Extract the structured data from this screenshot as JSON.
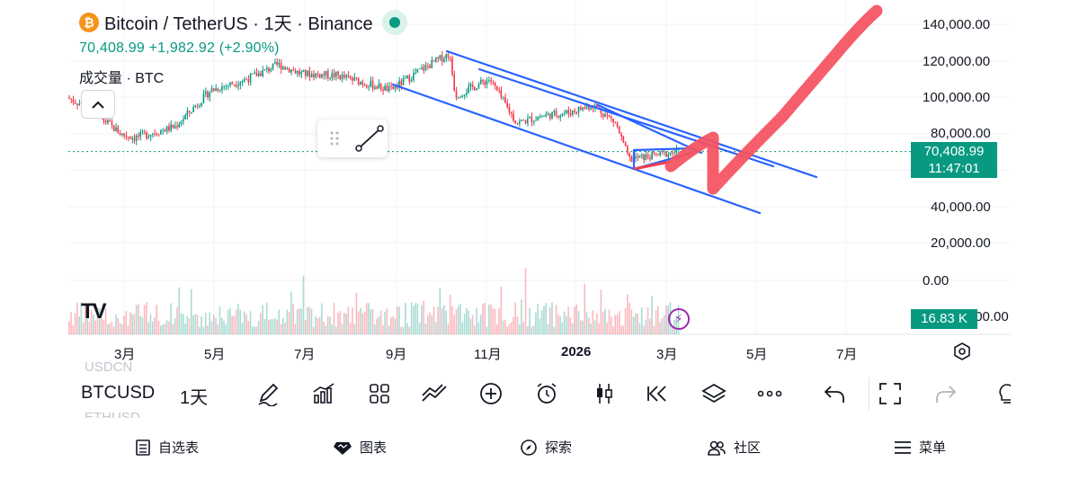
{
  "symbol": {
    "title": "Bitcoin / TetherUS · 1天 · Binance",
    "price_line": "70,408.99  +1,982.92 (+2.90%)",
    "volume_label": "成交量 · BTC",
    "currency_icon": "bitcoin-icon"
  },
  "price_axis": {
    "ticks": [
      "140,000.00",
      "120,000.00",
      "100,000.00",
      "80,000.00",
      "60,000.00",
      "40,000.00",
      "20,000.00",
      "0.00",
      "-20,000.00"
    ],
    "current_price": "70,408.99",
    "countdown": "11:47:01",
    "volume_value": "16.83 K",
    "accent_color": "#089981"
  },
  "time_axis": {
    "labels": [
      "3月",
      "5月",
      "7月",
      "9月",
      "11月",
      "2026",
      "3月",
      "5月",
      "7月"
    ]
  },
  "watermark": "TV",
  "toolbar": {
    "symbol": "BTCUSD",
    "interval": "1天",
    "ghost_above": "USDCN",
    "ghost_below": "ETHUSD",
    "tools": [
      "pencil-icon",
      "indicators-icon",
      "layout-icon",
      "compare-icon",
      "add-icon",
      "alarm-icon",
      "candles-icon",
      "replay-icon",
      "layers-icon",
      "more-icon",
      "undo-icon",
      "fullscreen-icon",
      "redo-icon",
      "bulb-icon"
    ]
  },
  "bottom_nav": {
    "watchlist": "自选表",
    "chart": "图表",
    "explore": "探索",
    "community": "社区",
    "menu": "菜单"
  },
  "chart_data": {
    "type": "candlestick",
    "title": "Bitcoin / TetherUS · 1天 · Binance",
    "ylim": [
      -20000,
      140000
    ],
    "xlabel": "",
    "ylabel": "",
    "x": [
      "3月",
      "5月",
      "7月",
      "9月",
      "11月",
      "2026",
      "3月"
    ],
    "close": [
      95000,
      80000,
      105000,
      118000,
      112000,
      88000,
      70408.99
    ],
    "annotations": [
      "descending channel",
      "hand-drawn upward arrow"
    ]
  }
}
